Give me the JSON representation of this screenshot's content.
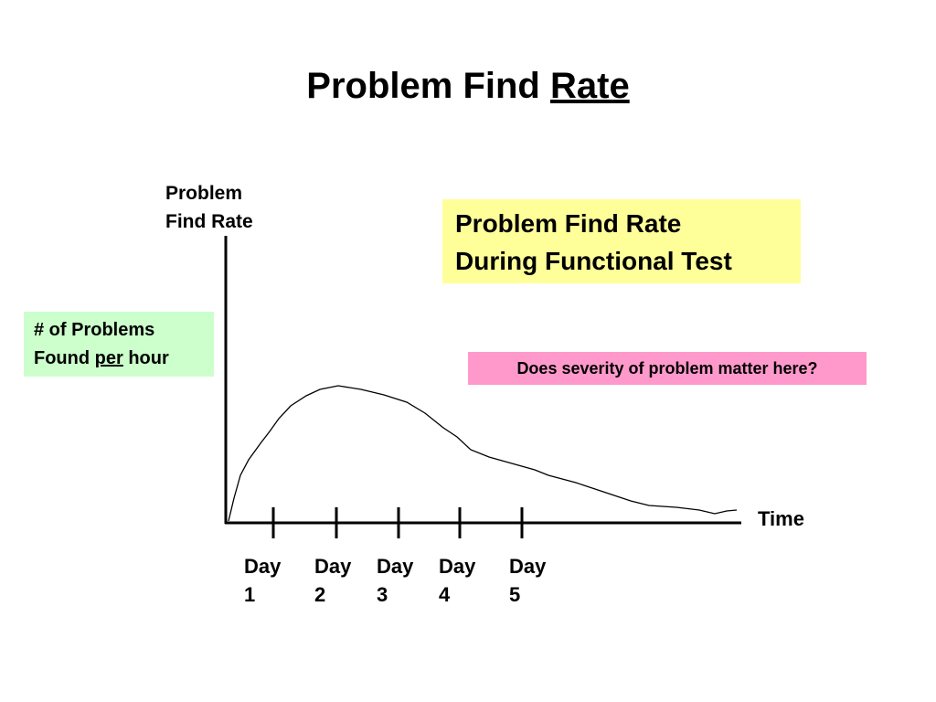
{
  "title": {
    "plain": "Problem Find",
    "underlined": "Rate"
  },
  "y_axis_label": [
    "Problem",
    "Find Rate"
  ],
  "x_axis_label": "Time",
  "callout_yellow": [
    "Problem Find Rate",
    "During Functional Test"
  ],
  "callout_green": {
    "line1": "# of Problems",
    "line2": [
      "Found",
      "per",
      "hour"
    ]
  },
  "callout_pink": "Does severity of problem matter here?",
  "ticks": [
    {
      "word": "Day",
      "number": "1"
    },
    {
      "word": "Day",
      "number": "2"
    },
    {
      "word": "Day",
      "number": "3"
    },
    {
      "word": "Day",
      "number": "4"
    },
    {
      "word": "Day",
      "number": "5"
    }
  ]
}
